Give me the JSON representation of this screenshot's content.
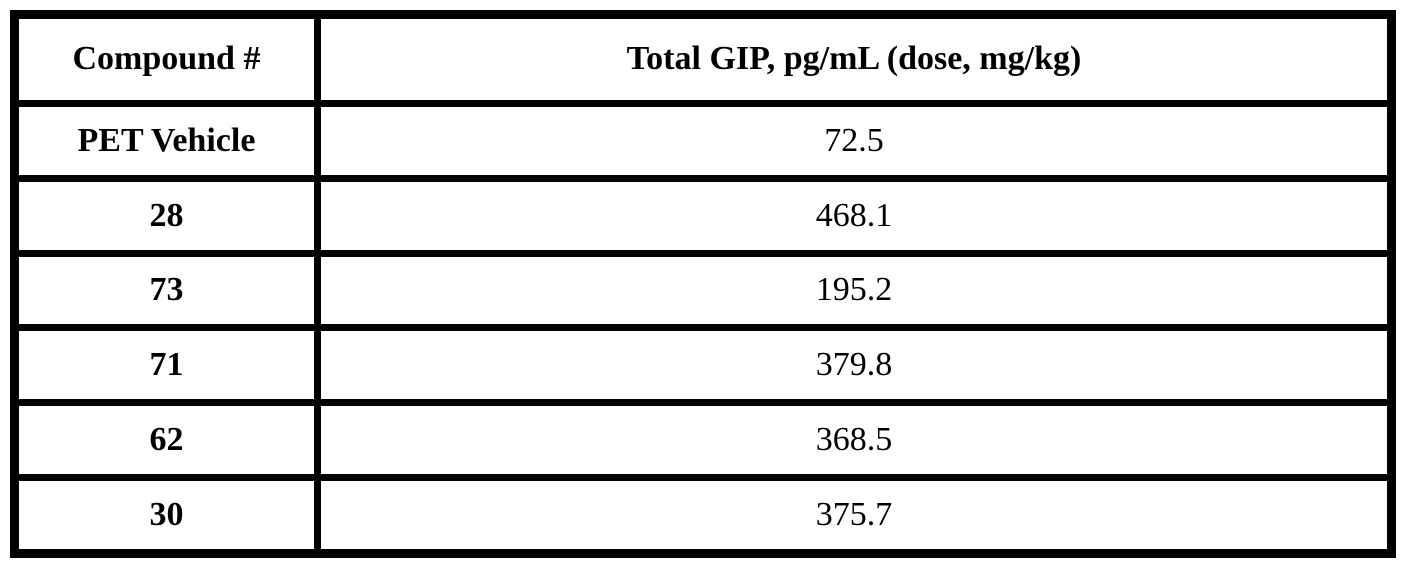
{
  "table": {
    "border_color": "#000000",
    "background_color": "#ffffff",
    "col_headers": [
      "Compound #",
      "Total GIP, pg/mL (dose, mg/kg)"
    ],
    "rows": [
      {
        "compound": "PET Vehicle",
        "total_gip": "72.5"
      },
      {
        "compound": "28",
        "total_gip": "468.1"
      },
      {
        "compound": "73",
        "total_gip": "195.2"
      },
      {
        "compound": "71",
        "total_gip": "379.8"
      },
      {
        "compound": "62",
        "total_gip": "368.5"
      },
      {
        "compound": "30",
        "total_gip": "375.7"
      }
    ]
  }
}
